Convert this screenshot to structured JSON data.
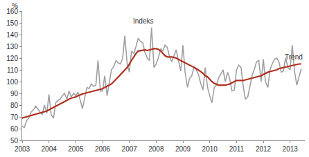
{
  "chart_data": {
    "type": "line",
    "ylabel": "%",
    "x": [
      2003,
      2003.08,
      2003.17,
      2003.25,
      2003.33,
      2003.42,
      2003.5,
      2003.58,
      2003.67,
      2003.75,
      2003.83,
      2003.92,
      2004,
      2004.08,
      2004.17,
      2004.25,
      2004.33,
      2004.42,
      2004.5,
      2004.58,
      2004.67,
      2004.75,
      2004.83,
      2004.92,
      2005,
      2005.08,
      2005.17,
      2005.25,
      2005.33,
      2005.42,
      2005.5,
      2005.58,
      2005.67,
      2005.75,
      2005.83,
      2005.92,
      2006,
      2006.08,
      2006.17,
      2006.25,
      2006.33,
      2006.42,
      2006.5,
      2006.58,
      2006.67,
      2006.75,
      2006.83,
      2006.92,
      2007,
      2007.08,
      2007.17,
      2007.25,
      2007.33,
      2007.42,
      2007.5,
      2007.58,
      2007.67,
      2007.75,
      2007.83,
      2007.92,
      2008,
      2008.08,
      2008.17,
      2008.25,
      2008.33,
      2008.42,
      2008.5,
      2008.58,
      2008.67,
      2008.75,
      2008.83,
      2008.92,
      2009,
      2009.08,
      2009.17,
      2009.25,
      2009.33,
      2009.42,
      2009.5,
      2009.58,
      2009.67,
      2009.75,
      2009.83,
      2009.92,
      2010,
      2010.08,
      2010.17,
      2010.25,
      2010.33,
      2010.42,
      2010.5,
      2010.58,
      2010.67,
      2010.75,
      2010.83,
      2010.92,
      2011,
      2011.08,
      2011.17,
      2011.25,
      2011.33,
      2011.42,
      2011.5,
      2011.58,
      2011.67,
      2011.75,
      2011.83,
      2011.92,
      2012,
      2012.08,
      2012.17,
      2012.25,
      2012.33,
      2012.42,
      2012.5,
      2012.58,
      2012.67,
      2012.75,
      2012.83,
      2012.92,
      2013,
      2013.08,
      2013.17,
      2013.25,
      2013.33,
      2013.42
    ],
    "series": [
      {
        "name": "Indeks",
        "color": "#a0a0a0",
        "values": [
          62,
          61,
          67,
          69,
          74,
          76,
          79,
          77,
          74,
          72,
          80,
          73,
          89,
          72,
          69,
          82,
          84,
          85,
          88,
          90,
          85,
          92,
          87,
          90,
          88,
          91,
          84,
          77,
          86,
          95,
          94,
          98,
          96,
          97,
          118,
          92,
          92,
          105,
          88,
          100,
          110,
          113,
          118,
          116,
          115,
          120,
          139,
          115,
          108,
          126,
          124,
          130,
          137,
          134,
          133,
          125,
          120,
          118,
          146,
          112,
          115,
          120,
          128,
          126,
          131,
          129,
          121,
          117,
          123,
          127,
          118,
          109,
          131,
          108,
          95,
          103,
          105,
          113,
          110,
          106,
          98,
          93,
          112,
          95,
          88,
          82,
          95,
          97,
          103,
          107,
          110,
          100,
          108,
          102,
          92,
          93,
          110,
          114,
          112,
          96,
          85,
          87,
          97,
          105,
          111,
          117,
          118,
          100,
          119,
          100,
          95,
          110,
          115,
          119,
          120,
          117,
          108,
          109,
          120,
          112,
          110,
          131,
          108,
          97,
          104,
          111
        ]
      },
      {
        "name": "Trend",
        "color": "#b03020",
        "values": [
          69,
          69.5,
          70,
          70.5,
          71,
          72,
          72.5,
          73,
          73.5,
          74,
          74.5,
          75,
          76,
          77,
          78,
          79,
          80,
          81,
          82,
          83,
          84,
          85,
          86,
          86.5,
          87,
          88,
          89,
          89.5,
          90,
          90.5,
          91,
          91.5,
          92,
          92.5,
          93,
          93.5,
          94,
          95,
          96,
          97,
          98,
          100,
          102,
          104,
          106,
          108,
          110,
          112,
          115,
          118,
          121,
          124,
          126,
          126.5,
          127,
          127,
          126.5,
          127,
          127.5,
          128,
          128,
          127.5,
          126,
          124,
          122,
          121,
          121,
          121,
          120.5,
          120,
          119,
          118,
          117,
          116,
          115,
          114,
          113,
          112,
          111,
          110,
          108.5,
          107,
          105,
          104,
          102,
          100,
          98.5,
          97.5,
          97,
          97,
          97,
          97,
          97.5,
          98,
          99,
          100,
          101,
          101,
          101,
          101,
          101.5,
          102,
          102.5,
          103,
          103.5,
          104,
          104.5,
          105,
          106,
          107,
          108,
          108.5,
          109,
          109.5,
          110,
          111,
          111.5,
          112,
          112,
          112.5,
          113,
          113.5,
          114,
          114.5,
          115,
          115
        ]
      }
    ],
    "xlim": [
      2003,
      2013.55
    ],
    "xticks": [
      2003,
      2004,
      2005,
      2006,
      2007,
      2008,
      2009,
      2010,
      2011,
      2012,
      2013
    ],
    "ylim": [
      50,
      160
    ],
    "yticks": [
      50,
      60,
      70,
      80,
      90,
      100,
      110,
      120,
      130,
      140,
      150,
      160
    ],
    "grid": false
  }
}
